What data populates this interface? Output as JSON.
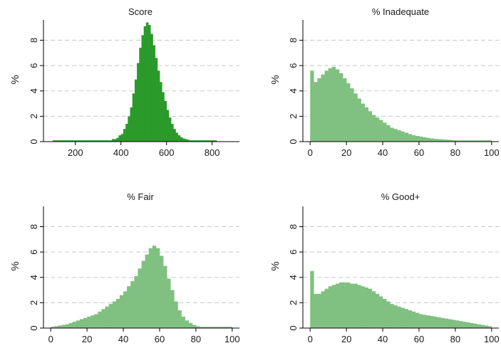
{
  "figure": {
    "colors": {
      "score_bars": "#2a9a2a",
      "pct_bars": "#80c080",
      "gridline": "#c8c8c8",
      "axis": "#000000"
    }
  },
  "chart_data": [
    {
      "type": "bar",
      "title": "Score",
      "ylabel": "%",
      "xlim": [
        60,
        920
      ],
      "ylim": [
        0,
        9.6
      ],
      "xticks": [
        200,
        400,
        600,
        800
      ],
      "yticks": [
        0,
        2,
        4,
        6,
        8
      ],
      "grid": true,
      "bin_start": 100,
      "bin_width": 10,
      "values": [
        0.1,
        0.1,
        0.1,
        0.1,
        0.1,
        0.1,
        0.1,
        0.1,
        0.1,
        0.1,
        0.1,
        0.1,
        0.1,
        0.1,
        0.1,
        0.1,
        0.1,
        0.1,
        0.1,
        0.1,
        0.1,
        0.1,
        0.1,
        0.1,
        0.1,
        0.1,
        0.2,
        0.2,
        0.3,
        0.5,
        0.6,
        1.0,
        1.4,
        2.0,
        2.7,
        3.8,
        4.9,
        6.2,
        7.4,
        8.4,
        9.1,
        9.4,
        9.2,
        8.5,
        7.6,
        6.6,
        5.6,
        4.7,
        3.9,
        3.2,
        2.5,
        1.9,
        1.4,
        1.0,
        0.7,
        0.5,
        0.35,
        0.25,
        0.2,
        0.15,
        0.1,
        0.1,
        0.1,
        0.1,
        0.1,
        0.1,
        0.1,
        0.1,
        0.1,
        0.1,
        0.1,
        0.1
      ]
    },
    {
      "type": "bar",
      "title": "% Inadequate",
      "ylabel": "%",
      "xlim": [
        -4,
        104
      ],
      "ylim": [
        0,
        9.6
      ],
      "xticks": [
        0,
        20,
        40,
        60,
        80,
        100
      ],
      "yticks": [
        0,
        2,
        4,
        6,
        8
      ],
      "grid": true,
      "bin_start": 0,
      "bin_width": 2,
      "values": [
        5.6,
        4.7,
        5.0,
        5.3,
        5.6,
        5.8,
        5.9,
        5.7,
        5.4,
        5.0,
        4.6,
        4.2,
        3.8,
        3.4,
        3.0,
        2.7,
        2.4,
        2.1,
        1.9,
        1.7,
        1.5,
        1.3,
        1.1,
        1.0,
        0.9,
        0.8,
        0.7,
        0.6,
        0.5,
        0.45,
        0.4,
        0.35,
        0.3,
        0.25,
        0.22,
        0.2,
        0.18,
        0.16,
        0.14,
        0.12,
        0.1,
        0.1,
        0.1,
        0.1,
        0.1,
        0.1,
        0.1,
        0.1,
        0.1,
        0.1
      ]
    },
    {
      "type": "bar",
      "title": "% Fair",
      "ylabel": "%",
      "xlim": [
        -4,
        104
      ],
      "ylim": [
        0,
        9.6
      ],
      "xticks": [
        0,
        20,
        40,
        60,
        80,
        100
      ],
      "yticks": [
        0,
        2,
        4,
        6,
        8
      ],
      "grid": true,
      "bin_start": 0,
      "bin_width": 2,
      "values": [
        0.1,
        0.15,
        0.2,
        0.25,
        0.3,
        0.4,
        0.5,
        0.6,
        0.7,
        0.8,
        0.9,
        1.0,
        1.1,
        1.3,
        1.5,
        1.7,
        1.9,
        2.1,
        2.3,
        2.6,
        2.9,
        3.3,
        3.7,
        4.1,
        4.7,
        5.3,
        5.8,
        6.3,
        6.5,
        6.3,
        5.7,
        4.9,
        3.9,
        3.0,
        2.1,
        1.4,
        0.9,
        0.6,
        0.4,
        0.25,
        0.15,
        0.1,
        0.1,
        0.1,
        0.1,
        0.1,
        0.1,
        0.1,
        0.1,
        0.1
      ]
    },
    {
      "type": "bar",
      "title": "% Good+",
      "ylabel": "%",
      "xlim": [
        -4,
        104
      ],
      "ylim": [
        0,
        9.6
      ],
      "xticks": [
        0,
        20,
        40,
        60,
        80,
        100
      ],
      "yticks": [
        0,
        2,
        4,
        6,
        8
      ],
      "grid": true,
      "bin_start": 0,
      "bin_width": 2,
      "values": [
        4.5,
        2.7,
        2.7,
        2.9,
        3.1,
        3.3,
        3.4,
        3.5,
        3.6,
        3.6,
        3.6,
        3.5,
        3.5,
        3.4,
        3.3,
        3.2,
        3.1,
        2.9,
        2.7,
        2.5,
        2.3,
        2.1,
        1.9,
        1.8,
        1.7,
        1.6,
        1.5,
        1.4,
        1.3,
        1.2,
        1.1,
        1.05,
        1.0,
        0.95,
        0.9,
        0.85,
        0.8,
        0.75,
        0.7,
        0.65,
        0.6,
        0.55,
        0.5,
        0.45,
        0.4,
        0.35,
        0.3,
        0.25,
        0.2,
        0.15
      ]
    }
  ]
}
